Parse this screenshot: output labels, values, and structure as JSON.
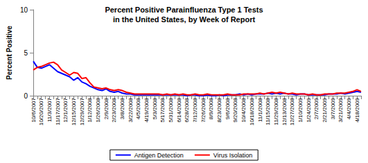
{
  "chart_data": {
    "type": "line",
    "title": "Percent Positive Parainfluenza Type 1 Tests\nin the United States, by Week of Report",
    "y_label": "Percent Positive",
    "categories": [
      "10/6/2007",
      null,
      "10/20/2007",
      null,
      "11/3/2007",
      null,
      "11/17/2007",
      null,
      "12/1/2007",
      null,
      "12/15/2007",
      null,
      "12/29/2007",
      null,
      "1/12/2008",
      null,
      "1/26/2008",
      null,
      "2/9/2008",
      null,
      "2/23/2008",
      null,
      "3/8/2008",
      null,
      "3/22/2008",
      null,
      "4/5/2008",
      null,
      "4/19/2008",
      null,
      "5/3/2008",
      null,
      "5/17/2008",
      null,
      "5/31/2008",
      null,
      "6/14/2008",
      null,
      "6/28/2008",
      null,
      "7/12/2008",
      null,
      "7/26/2008",
      null,
      "8/9/2008",
      null,
      "8/23/2008",
      null,
      "9/6/2008",
      null,
      "9/20/2008",
      null,
      "10/4/2008",
      null,
      "10/18/2008",
      null,
      "11/1/2008",
      null,
      "11/15/2008",
      null,
      "11/29/2008",
      null,
      "12/13/2008",
      null,
      "12/27/2008",
      null,
      "1/10/2009",
      null,
      "1/24/2009",
      null,
      "2/7/2009",
      null,
      "2/21/2009",
      null,
      "3/7/2009",
      null,
      "3/21/2009",
      null,
      "4/4/2009",
      null,
      "4/18/2009",
      null
    ],
    "series": [
      {
        "name": "Antigen Detection",
        "color": "#0000ff",
        "values": [
          4.0,
          3.3,
          3.2,
          3.4,
          3.6,
          3.2,
          2.8,
          2.6,
          2.4,
          2.2,
          1.8,
          2.1,
          1.6,
          1.4,
          1.1,
          0.9,
          0.7,
          0.6,
          0.8,
          0.5,
          0.4,
          0.5,
          0.3,
          0.2,
          0.2,
          0.1,
          0.1,
          0.1,
          0.1,
          0.1,
          0.1,
          0.1,
          0.1,
          0.1,
          0.1,
          0.1,
          0.1,
          0.1,
          0.0,
          0.1,
          0.1,
          0.0,
          0.0,
          0.1,
          0.0,
          0.0,
          0.1,
          0.0,
          0.1,
          0.1,
          0.1,
          0.2,
          0.1,
          0.2,
          0.1,
          0.2,
          0.2,
          0.2,
          0.3,
          0.2,
          0.3,
          0.2,
          0.3,
          0.2,
          0.2,
          0.1,
          0.2,
          0.2,
          0.1,
          0.1,
          0.1,
          0.1,
          0.1,
          0.2,
          0.2,
          0.2,
          0.3,
          0.2,
          0.3,
          0.4,
          0.5,
          0.4
        ]
      },
      {
        "name": "Virus Isolation",
        "color": "#ff0000",
        "values": [
          3.0,
          3.3,
          3.4,
          3.6,
          3.8,
          3.9,
          3.6,
          3.0,
          2.7,
          2.4,
          2.7,
          2.6,
          2.0,
          2.1,
          1.5,
          1.0,
          0.9,
          0.8,
          0.9,
          0.7,
          0.6,
          0.7,
          0.6,
          0.4,
          0.3,
          0.2,
          0.2,
          0.2,
          0.2,
          0.2,
          0.2,
          0.2,
          0.1,
          0.2,
          0.1,
          0.2,
          0.1,
          0.2,
          0.1,
          0.1,
          0.2,
          0.1,
          0.1,
          0.2,
          0.1,
          0.1,
          0.1,
          0.1,
          0.2,
          0.1,
          0.1,
          0.1,
          0.2,
          0.2,
          0.2,
          0.2,
          0.3,
          0.2,
          0.3,
          0.4,
          0.3,
          0.4,
          0.3,
          0.2,
          0.3,
          0.2,
          0.2,
          0.2,
          0.1,
          0.2,
          0.1,
          0.1,
          0.2,
          0.2,
          0.2,
          0.3,
          0.3,
          0.3,
          0.4,
          0.5,
          0.7,
          0.5
        ]
      }
    ],
    "ylim": [
      0,
      10
    ],
    "yticks": [
      0,
      5,
      10
    ],
    "grid": false,
    "legend": "bottom",
    "marker": "none",
    "line_style": "solid"
  }
}
